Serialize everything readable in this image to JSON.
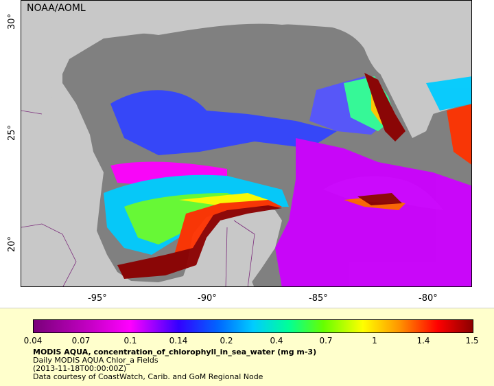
{
  "map": {
    "credit": "NOAA/AOML",
    "y_ticks": [
      "30°",
      "25°",
      "20°"
    ],
    "x_ticks": [
      "-95°",
      "-90°",
      "-85°",
      "-80°"
    ]
  },
  "legend": {
    "tick_labels": [
      "0.04",
      "0.07",
      "0.1",
      "0.14",
      "0.2",
      "0.4",
      "0.7",
      "1",
      "1.4",
      "1.5"
    ],
    "title": "MODIS AQUA, concentration_of_chlorophyll_in_sea_water (mg m-3)",
    "line2": "Daily MODIS AQUA Chlor_a Fields",
    "line3": "(2013-11-18T00:00:00Z)",
    "line4": "Data courtesy of CoastWatch, Carib. and GoM Regional Node"
  },
  "colors": {
    "land": "#c8c8c8",
    "ocean_missing": "#808080",
    "legend_bg": "#ffffcc"
  }
}
